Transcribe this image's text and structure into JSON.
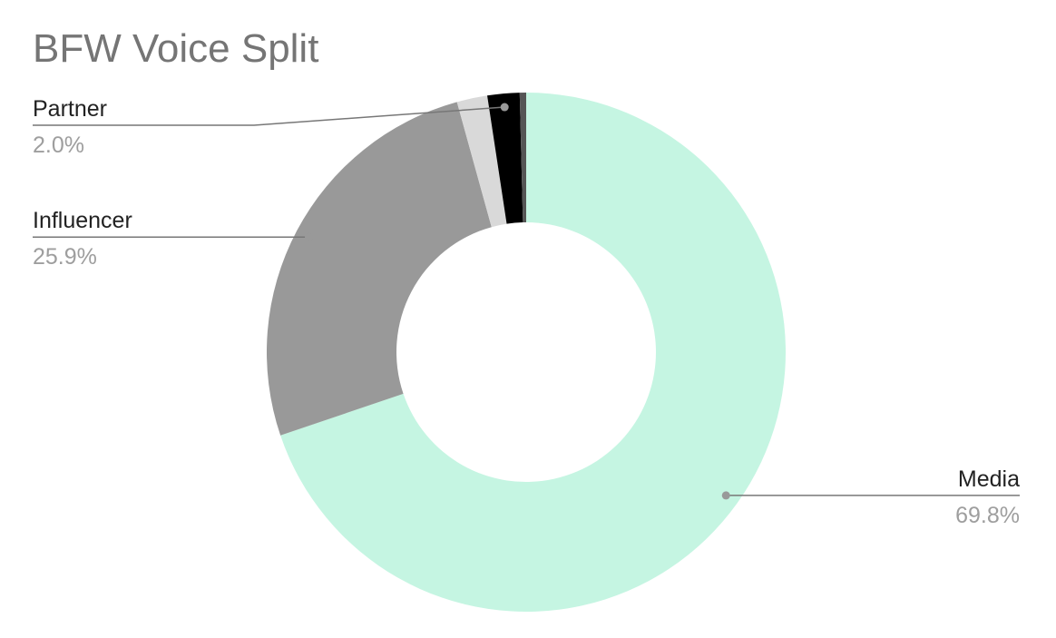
{
  "chart_data": {
    "type": "donut",
    "title": "BFW Voice Split",
    "categories": [
      "Media",
      "Influencer",
      null,
      "Partner",
      null
    ],
    "values": [
      69.8,
      25.9,
      1.9,
      2.0,
      0.4
    ],
    "value_labels": [
      "69.8%",
      "25.9%",
      null,
      "2.0%",
      null
    ],
    "colors": [
      "#c5f5e2",
      "#999999",
      "#d9d9d9",
      "#000000",
      "#555555"
    ]
  }
}
